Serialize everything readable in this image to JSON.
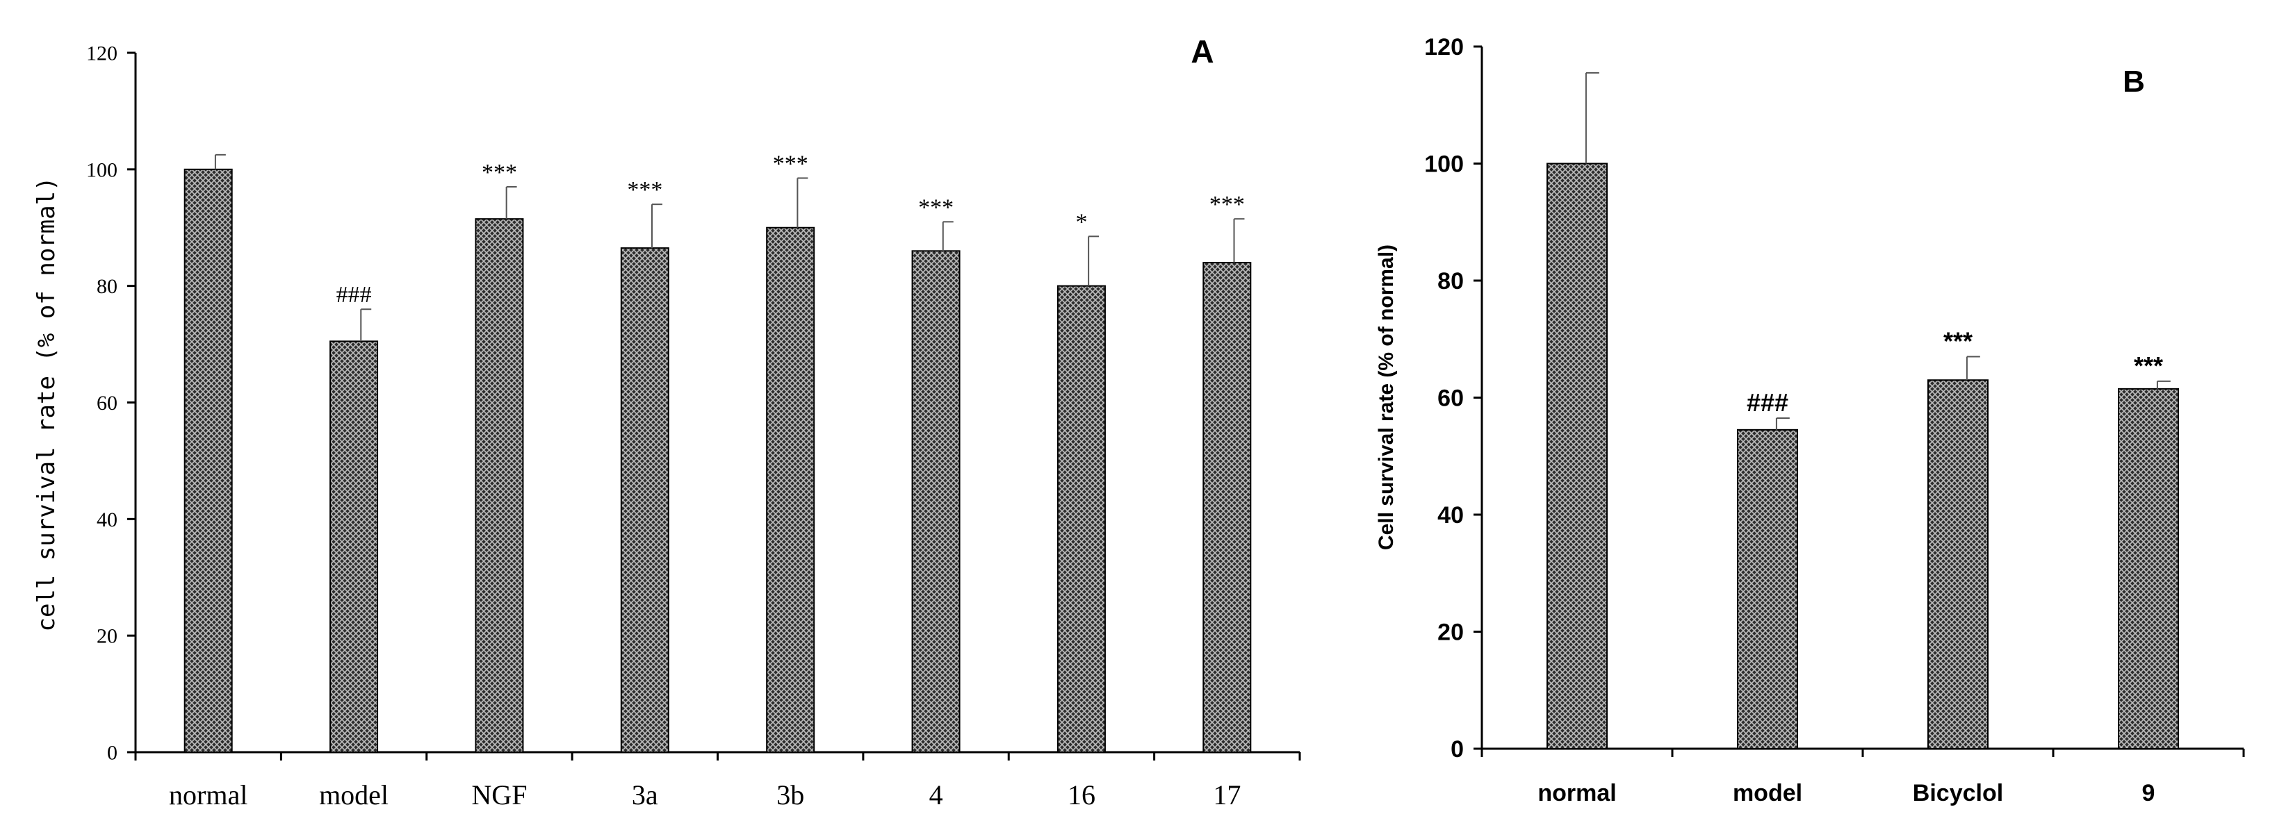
{
  "chart_data": [
    {
      "type": "bar",
      "panel_label": "A",
      "title": "",
      "xlabel": "",
      "ylabel": "cell survival rate  (% of normal)",
      "ylim": [
        0,
        120
      ],
      "yticks": [
        "0",
        "20",
        "40",
        "60",
        "80",
        "100",
        "120"
      ],
      "categories": [
        "normal",
        "model",
        "NGF",
        "3a",
        "3b",
        "4",
        "16",
        "17"
      ],
      "values": [
        100,
        70.5,
        91.5,
        86.5,
        90,
        86,
        80,
        84
      ],
      "errors": [
        2.5,
        5.5,
        5.5,
        7.5,
        8.5,
        5,
        8.5,
        7.5
      ],
      "annotations": [
        "",
        "###",
        "***",
        "***",
        "***",
        "***",
        "*",
        "***"
      ],
      "grid": false,
      "legend": "none",
      "bar_pattern": "crosshatch-dark"
    },
    {
      "type": "bar",
      "panel_label": "B",
      "title": "",
      "xlabel": "",
      "ylabel": "Cell survival rate (% of normal)",
      "ylim": [
        0,
        120
      ],
      "yticks": [
        "0",
        "20",
        "40",
        "60",
        "80",
        "100",
        "120"
      ],
      "categories": [
        "normal",
        "model",
        "Bicyclol",
        "9"
      ],
      "values": [
        100,
        54.5,
        63,
        61.5
      ],
      "errors": [
        15.5,
        2,
        4,
        1.3
      ],
      "annotations": [
        "",
        "###",
        "***",
        "***"
      ],
      "grid": false,
      "legend": "none",
      "bar_pattern": "crosshatch-dark"
    }
  ]
}
